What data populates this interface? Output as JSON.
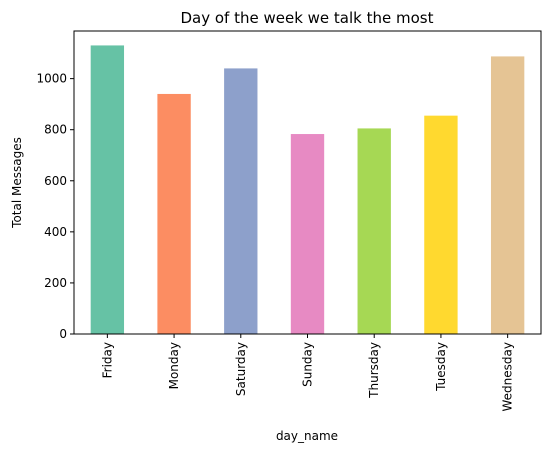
{
  "chart_data": {
    "type": "bar",
    "title": "Day of the week we talk the most",
    "xlabel": "day_name",
    "ylabel": "Total Messages",
    "categories": [
      "Friday",
      "Monday",
      "Saturday",
      "Sunday",
      "Thursday",
      "Tuesday",
      "Wednesday"
    ],
    "values": [
      1130,
      940,
      1040,
      783,
      805,
      855,
      1087
    ],
    "colors": [
      "#66c2a5",
      "#fc8d62",
      "#8da0cb",
      "#e78ac3",
      "#a6d854",
      "#ffd92f",
      "#e5c494"
    ],
    "yticks": [
      0,
      200,
      400,
      600,
      800,
      1000
    ],
    "ylim": [
      0,
      1186.5
    ],
    "grid": false,
    "legend": "none"
  }
}
